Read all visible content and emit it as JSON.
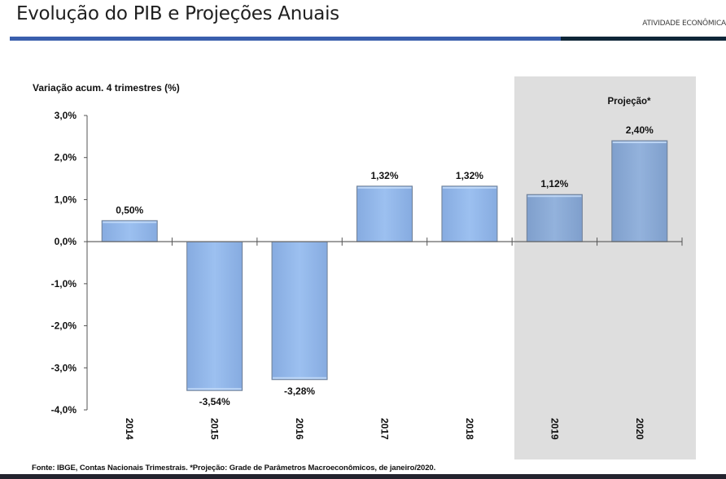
{
  "header": {
    "title": "Evolução do PIB e Projeções Anuais",
    "section": "ATIVIDADE ECONÔMICA"
  },
  "colors": {
    "accent_blue": "#3a5fad",
    "accent_dark": "#0e2638",
    "bar_fill": "#95b9ea",
    "bar_fill_projection": "#8cadd8",
    "projection_bg": "#dedede"
  },
  "footer": {
    "source": "Fonte: IBGE, Contas Nacionais Trimestrais.  *Projeção:  Grade de Parâmetros Macroeconômicos, de janeiro/2020."
  },
  "chart_data": {
    "type": "bar",
    "title": "",
    "ylabel": "Variação acum. 4 trimestres (%)",
    "xlabel": "",
    "categories": [
      "2014",
      "2015",
      "2016",
      "2017",
      "2018",
      "2019",
      "2020"
    ],
    "values": [
      0.5,
      -3.54,
      -3.28,
      1.32,
      1.32,
      1.12,
      2.4
    ],
    "data_labels": [
      "0,50%",
      "-3,54%",
      "-3,28%",
      "1,32%",
      "1,32%",
      "1,12%",
      "2,40%"
    ],
    "projection": [
      false,
      false,
      false,
      false,
      false,
      true,
      true
    ],
    "projection_label": "Projeção*",
    "ylim": [
      -4.0,
      3.0
    ],
    "yticks": [
      3.0,
      2.0,
      1.0,
      0.0,
      -1.0,
      -2.0,
      -3.0,
      -4.0
    ],
    "ytick_labels": [
      "3,0%",
      "2,0%",
      "1,0%",
      "0,0%",
      "-1,0%",
      "-2,0%",
      "-3,0%",
      "-4,0%"
    ],
    "grid": false,
    "legend": "none"
  }
}
